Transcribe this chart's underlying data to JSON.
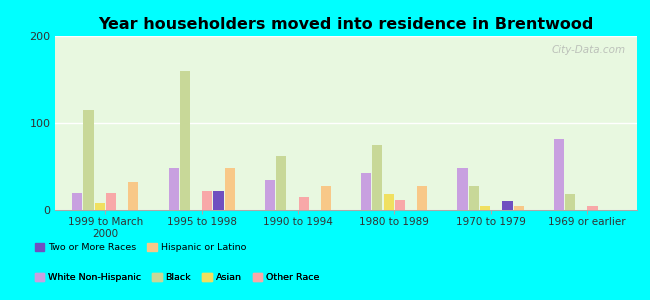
{
  "title": "Year householders moved into residence in Brentwood",
  "categories": [
    "1999 to March\n2000",
    "1995 to 1998",
    "1990 to 1994",
    "1980 to 1989",
    "1970 to 1979",
    "1969 or earlier"
  ],
  "series_order": [
    "White Non-Hispanic",
    "Black",
    "Asian",
    "Other Race",
    "Two or More Races",
    "Hispanic or Latino"
  ],
  "series": {
    "White Non-Hispanic": [
      20,
      48,
      35,
      42,
      48,
      82
    ],
    "Black": [
      115,
      160,
      62,
      75,
      28,
      18
    ],
    "Asian": [
      8,
      0,
      0,
      18,
      5,
      0
    ],
    "Other Race": [
      20,
      22,
      15,
      12,
      0,
      5
    ],
    "Two or More Races": [
      0,
      22,
      0,
      0,
      10,
      0
    ],
    "Hispanic or Latino": [
      32,
      48,
      28,
      28,
      5,
      0
    ]
  },
  "colors": {
    "White Non-Hispanic": "#c8a0e0",
    "Black": "#c8d898",
    "Asian": "#f0e060",
    "Other Race": "#f8a8a8",
    "Two or More Races": "#7050c0",
    "Hispanic or Latino": "#f8c888"
  },
  "legend_order_row1": [
    "White Non-Hispanic",
    "Black",
    "Asian",
    "Other Race"
  ],
  "legend_order_row2": [
    "Two or More Races",
    "Hispanic or Latino"
  ],
  "ylim": [
    0,
    200
  ],
  "yticks": [
    0,
    100,
    200
  ],
  "background_top": "#d8f0d0",
  "background_bottom": "#f0fff0",
  "outer_background": "#00ffff",
  "watermark": "City-Data.com",
  "grid_color": "#ffffff"
}
